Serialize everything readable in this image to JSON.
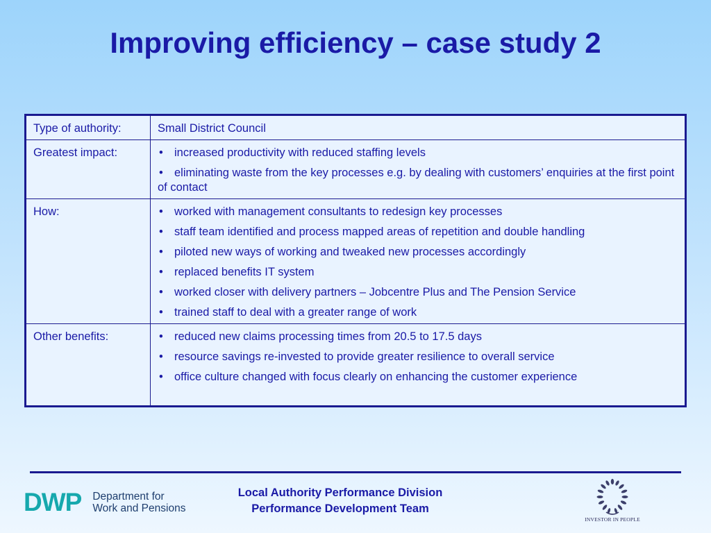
{
  "slide": {
    "title": "Improving efficiency – case study 2"
  },
  "table": {
    "rows": [
      {
        "label": "Type of authority:",
        "text": "Small District Council"
      },
      {
        "label": "Greatest impact:",
        "bullets": [
          "increased productivity with reduced staffing levels",
          "eliminating waste from the key processes e.g. by dealing with customers’ enquiries at the first point of contact"
        ]
      },
      {
        "label": "How:",
        "bullets": [
          "worked with management consultants to redesign key processes",
          "staff team identified and process mapped areas of repetition and double handling",
          "piloted new ways of working and tweaked new processes accordingly",
          "replaced benefits IT system",
          "worked closer with delivery partners – Jobcentre Plus and The Pension Service",
          "trained staff to deal with a greater range of work"
        ]
      },
      {
        "label": "Other benefits:",
        "bullets": [
          "reduced new claims processing times from 20.5 to 17.5 days",
          "resource savings re-invested to provide greater resilience to overall service",
          "office culture changed with focus clearly on enhancing the customer experience"
        ]
      }
    ]
  },
  "footer": {
    "dwp_mark": "DWP",
    "dwp_line1": "Department for",
    "dwp_line2": "Work and Pensions",
    "center_line1": "Local Authority Performance Division",
    "center_line2": "Performance Development Team",
    "iip_label": "INVESTOR IN PEOPLE"
  },
  "colors": {
    "title": "#1a1aa6",
    "border": "#1a1a90",
    "dwp_teal": "#16a8ad"
  },
  "icons": {
    "iip_logo": "laurel-wreath-icon"
  }
}
